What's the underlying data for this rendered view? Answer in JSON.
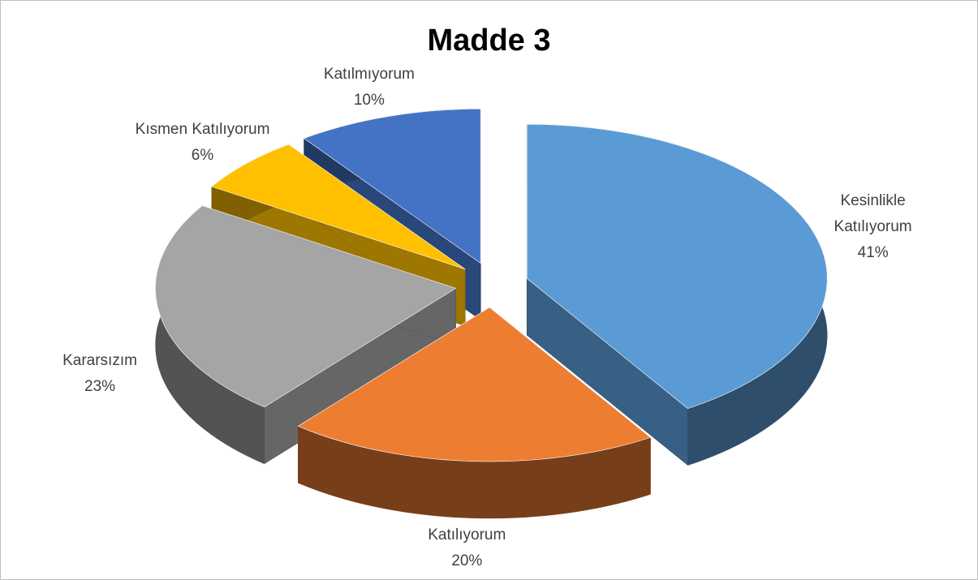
{
  "chart_data": {
    "type": "pie",
    "title": "Madde 3",
    "categories": [
      "Kesinlikle Katılıyorum",
      "Katılıyorum",
      "Kararsızım",
      "Kısmen Katılıyorum",
      "Katılmıyorum"
    ],
    "values": [
      41,
      20,
      23,
      6,
      10
    ],
    "value_labels": [
      "41%",
      "20%",
      "23%",
      "6%",
      "10%"
    ],
    "colors": [
      "#5b9bd5",
      "#ed7d31",
      "#a5a5a5",
      "#ffc000",
      "#4472c4"
    ]
  }
}
